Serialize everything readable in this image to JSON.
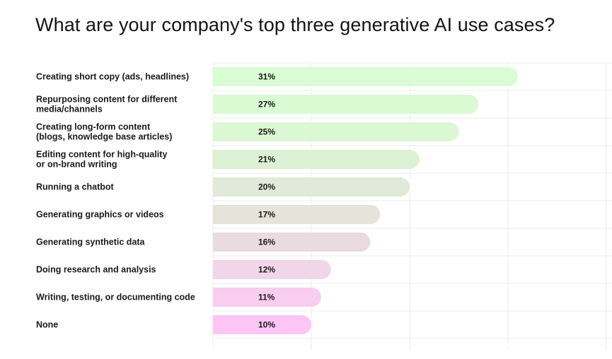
{
  "chart_data": {
    "type": "bar",
    "orientation": "horizontal",
    "title": "What are your company's top three generative AI use cases?",
    "categories": [
      [
        "Creating short copy (ads, headlines)"
      ],
      [
        "Repurposing content for different",
        "media/channels"
      ],
      [
        "Creating long-form content",
        "(blogs, knowledge base articles)"
      ],
      [
        "Editing content for high-quality",
        "or on-brand writing"
      ],
      [
        "Running a chatbot"
      ],
      [
        "Generating graphics or videos"
      ],
      [
        "Generating synthetic data"
      ],
      [
        "Doing research and analysis"
      ],
      [
        "Writing, testing, or documenting code"
      ],
      [
        "None"
      ]
    ],
    "values": [
      31,
      27,
      25,
      21,
      20,
      17,
      16,
      12,
      11,
      10
    ],
    "value_labels": [
      "31%",
      "27%",
      "25%",
      "21%",
      "20%",
      "17%",
      "16%",
      "12%",
      "11%",
      "10%"
    ],
    "colors": [
      "#d9fdd3",
      "#d9fad3",
      "#dcf7d3",
      "#dcf1d3",
      "#e1ead8",
      "#e4e4db",
      "#eadbe0",
      "#f1d5e8",
      "#f8cdef",
      "#fcc5f3"
    ],
    "xlim": [
      0,
      40
    ],
    "grid": true,
    "legend": "none"
  }
}
